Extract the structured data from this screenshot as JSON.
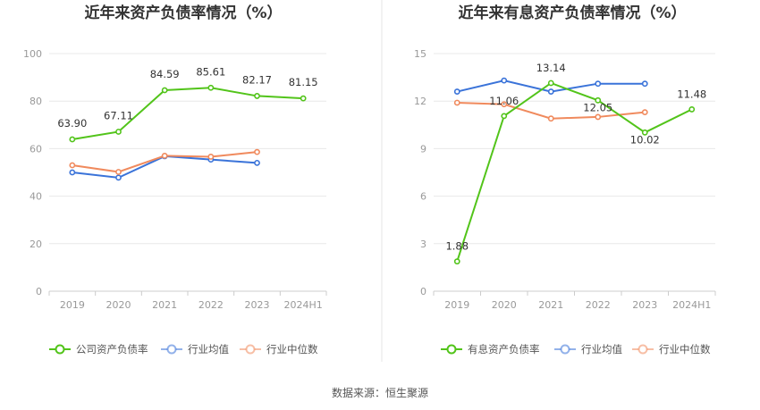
{
  "source": "数据来源：恒生聚源",
  "colors": {
    "company": "#52c41a",
    "average": "#3a73d9",
    "median": "#f08a5d"
  },
  "chart_data": [
    {
      "type": "line",
      "title": "近年来资产负债率情况（%）",
      "categories": [
        "2019",
        "2020",
        "2021",
        "2022",
        "2023",
        "2024H1"
      ],
      "ylim": [
        0,
        100
      ],
      "yticks": [
        0,
        20,
        40,
        60,
        80,
        100
      ],
      "grid": true,
      "legend_position": "bottom",
      "series": [
        {
          "name": "公司资产负债率",
          "key": "company",
          "values": [
            63.9,
            67.11,
            84.59,
            85.61,
            82.17,
            81.15
          ],
          "labels": [
            "63.90",
            "67.11",
            "84.59",
            "85.61",
            "82.17",
            "81.15"
          ]
        },
        {
          "name": "行业均值",
          "key": "average",
          "values": [
            50.0,
            47.8,
            56.8,
            55.4,
            54.0,
            null
          ]
        },
        {
          "name": "行业中位数",
          "key": "median",
          "values": [
            53.0,
            50.2,
            57.0,
            56.6,
            58.6,
            null
          ]
        }
      ]
    },
    {
      "type": "line",
      "title": "近年来有息资产负债率情况（%）",
      "categories": [
        "2019",
        "2020",
        "2021",
        "2022",
        "2023",
        "2024H1"
      ],
      "ylim": [
        0,
        15
      ],
      "yticks": [
        0,
        3,
        6,
        9,
        12,
        15
      ],
      "grid": true,
      "legend_position": "bottom",
      "series": [
        {
          "name": "有息资产负债率",
          "key": "company",
          "values": [
            1.88,
            11.06,
            13.14,
            12.05,
            10.02,
            11.48
          ],
          "labels": [
            "1.88",
            "11.06",
            "13.14",
            "12.05",
            "10.02",
            "11.48"
          ]
        },
        {
          "name": "行业均值",
          "key": "average",
          "values": [
            12.6,
            13.3,
            12.6,
            13.1,
            13.1,
            null
          ]
        },
        {
          "name": "行业中位数",
          "key": "median",
          "values": [
            11.9,
            11.8,
            10.9,
            11.0,
            11.3,
            null
          ]
        }
      ]
    }
  ]
}
